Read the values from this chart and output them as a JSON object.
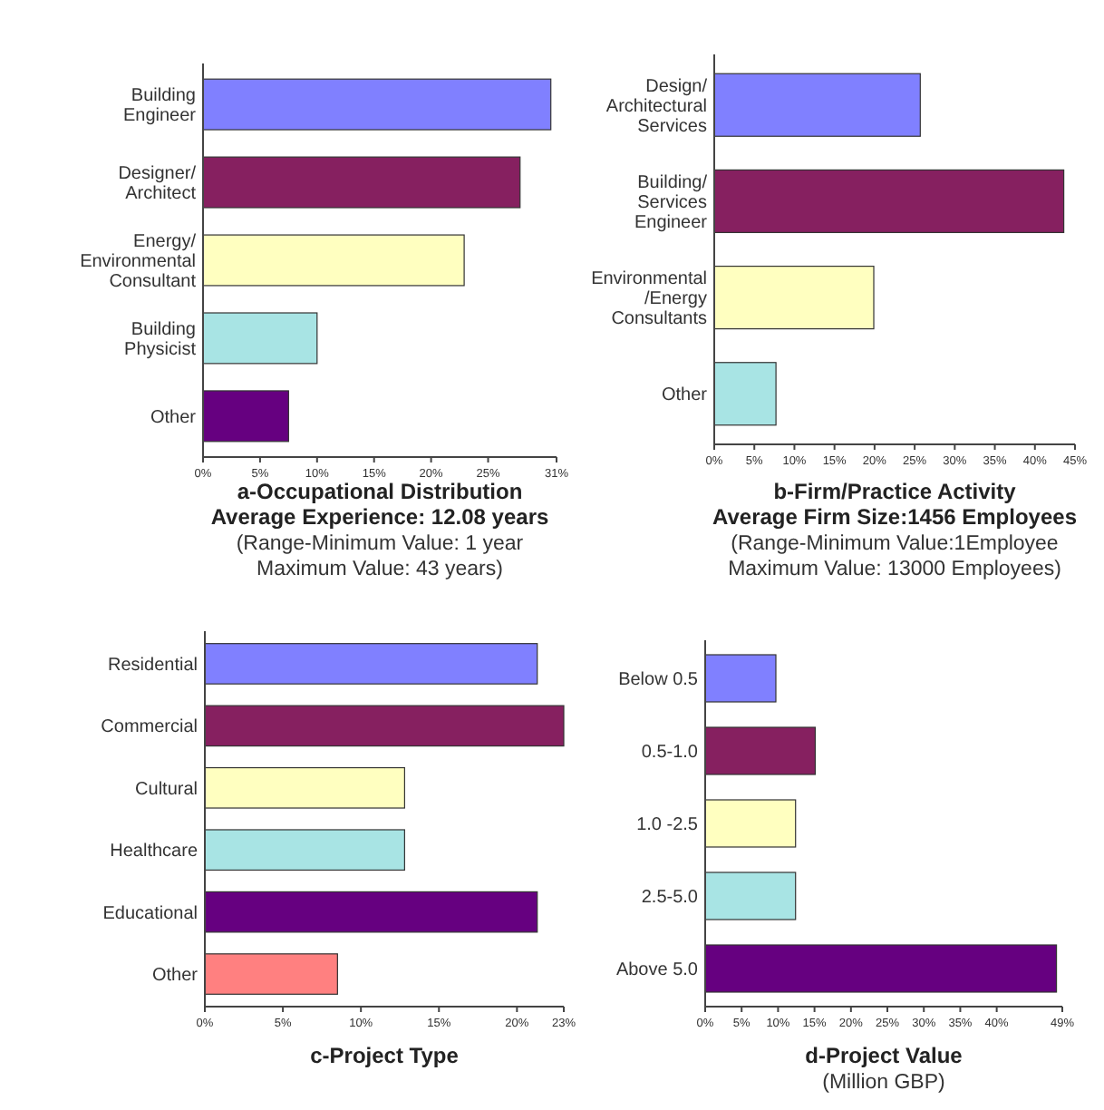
{
  "chart_data": [
    {
      "type": "bar",
      "orientation": "horizontal",
      "title": "a-Occupational Distribution",
      "subtitle": "Average Experience: 12.08 years",
      "annotations": [
        "(Range-Minimum Value: 1 year",
        "Maximum Value: 43 years)"
      ],
      "categories": [
        "Building\nEngineer",
        "Designer/\nArchitect",
        "Energy/\nEnvironmental\nConsultant",
        "Building\nPhysicist",
        "Other"
      ],
      "values": [
        30.5,
        27.8,
        22.9,
        10.0,
        7.5
      ],
      "colors": [
        "#8080ff",
        "#862060",
        "#ffffc0",
        "#a8e4e4",
        "#660080"
      ],
      "xlim": [
        0,
        31
      ],
      "xticks": [
        {
          "value": 0,
          "label": "0%"
        },
        {
          "value": 5,
          "label": "5%"
        },
        {
          "value": 10,
          "label": "10%"
        },
        {
          "value": 15,
          "label": "15%"
        },
        {
          "value": 20,
          "label": "20%"
        },
        {
          "value": 25,
          "label": "25%"
        },
        {
          "value": 31,
          "label": "31%"
        }
      ]
    },
    {
      "type": "bar",
      "orientation": "horizontal",
      "title": "b-Firm/Practice Activity",
      "subtitle": "Average Firm Size:1456 Employees",
      "annotations": [
        "(Range-Minimum Value:1Employee",
        "Maximum Value: 13000 Employees)"
      ],
      "categories": [
        "Design/\nArchitectural\nServices",
        "Building/\nServices\nEngineer",
        "Environmental\n/Energy\nConsultants",
        "Other"
      ],
      "values": [
        25.7,
        43.6,
        19.9,
        7.7
      ],
      "colors": [
        "#8080ff",
        "#862060",
        "#ffffc0",
        "#a8e4e4"
      ],
      "xlim": [
        0,
        45
      ],
      "xticks": [
        {
          "value": 0,
          "label": "0%"
        },
        {
          "value": 5,
          "label": "5%"
        },
        {
          "value": 10,
          "label": "10%"
        },
        {
          "value": 15,
          "label": "15%"
        },
        {
          "value": 20,
          "label": "20%"
        },
        {
          "value": 25,
          "label": "25%"
        },
        {
          "value": 30,
          "label": "30%"
        },
        {
          "value": 35,
          "label": "35%"
        },
        {
          "value": 40,
          "label": "40%"
        },
        {
          "value": 45,
          "label": "45%"
        }
      ]
    },
    {
      "type": "bar",
      "orientation": "horizontal",
      "title": "c-Project Type",
      "categories": [
        "Residential",
        "Commercial",
        "Cultural",
        "Healthcare",
        "Educational",
        "Other"
      ],
      "values": [
        21.3,
        23.0,
        12.8,
        12.8,
        21.3,
        8.5
      ],
      "colors": [
        "#8080ff",
        "#862060",
        "#ffffc0",
        "#a8e4e4",
        "#660080",
        "#ff8080"
      ],
      "xlim": [
        0,
        23
      ],
      "xticks": [
        {
          "value": 0,
          "label": "0%"
        },
        {
          "value": 5,
          "label": "5%"
        },
        {
          "value": 10,
          "label": "10%"
        },
        {
          "value": 15,
          "label": "15%"
        },
        {
          "value": 20,
          "label": "20%"
        },
        {
          "value": 23,
          "label": "23%"
        }
      ]
    },
    {
      "type": "bar",
      "orientation": "horizontal",
      "title": "d-Project Value",
      "annotations": [
        "(Million GBP)"
      ],
      "categories": [
        "Below 0.5",
        "0.5-1.0",
        "1.0 -2.5",
        "2.5-5.0",
        "Above 5.0"
      ],
      "values": [
        9.7,
        15.1,
        12.4,
        12.4,
        48.2
      ],
      "colors": [
        "#8080ff",
        "#862060",
        "#ffffc0",
        "#a8e4e4",
        "#660080"
      ],
      "xlim": [
        0,
        49
      ],
      "xticks": [
        {
          "value": 0,
          "label": "0%"
        },
        {
          "value": 5,
          "label": "5%"
        },
        {
          "value": 10,
          "label": "10%"
        },
        {
          "value": 15,
          "label": "15%"
        },
        {
          "value": 20,
          "label": "20%"
        },
        {
          "value": 25,
          "label": "25%"
        },
        {
          "value": 30,
          "label": "30%"
        },
        {
          "value": 35,
          "label": "35%"
        },
        {
          "value": 40,
          "label": "40%"
        },
        {
          "value": 49,
          "label": "49%"
        }
      ]
    }
  ]
}
